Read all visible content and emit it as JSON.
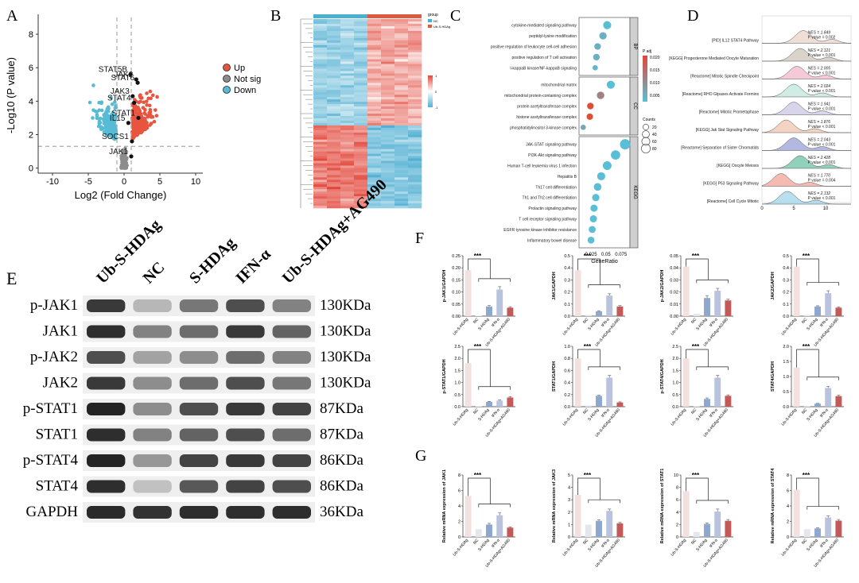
{
  "panels": {
    "A": "A",
    "B": "B",
    "C": "C",
    "D": "D",
    "E": "E",
    "F": "F",
    "G": "G"
  },
  "colors": {
    "up": "#e8543f",
    "down": "#56bcd6",
    "notsig": "#8c8c8c",
    "bar1": "#f2e1df",
    "bar2": "#e6e6ee",
    "bar3": "#8ea7cf",
    "bar4": "#b9c3df",
    "bar5": "#c25a5a"
  },
  "chart_data": [
    {
      "type": "scatter",
      "id": "volcano",
      "title": "",
      "xlabel": "Log2 (Fold Change)",
      "ylabel": "-Log10 (P value)",
      "xlim": [
        -12,
        11
      ],
      "ylim": [
        -0.3,
        9
      ],
      "xticks": [
        -10,
        -5,
        0,
        5,
        10
      ],
      "yticks": [
        0,
        2,
        4,
        6,
        8
      ],
      "thresholds": {
        "fc": [
          -1,
          1
        ],
        "p": 1.3
      },
      "legend": [
        {
          "label": "Up",
          "key": "up"
        },
        {
          "label": "Not sig",
          "key": "notsig"
        },
        {
          "label": "Down",
          "key": "down"
        }
      ],
      "labeled_genes": [
        {
          "name": "STAT5B",
          "x": 0.9,
          "y": 5.6
        },
        {
          "name": "JAK2",
          "x": 1.7,
          "y": 5.3
        },
        {
          "name": "STAT6",
          "x": 1.9,
          "y": 5.1
        },
        {
          "name": "JAK3",
          "x": 1.2,
          "y": 4.3
        },
        {
          "name": "STAT4",
          "x": 1.4,
          "y": 3.9
        },
        {
          "name": "STAT1",
          "x": 2.0,
          "y": 3.0
        },
        {
          "name": "IL15",
          "x": 0.6,
          "y": 2.7
        },
        {
          "name": "SOCS1",
          "x": 1.1,
          "y": 1.6
        },
        {
          "name": "JAK1",
          "x": 1.0,
          "y": 0.7
        }
      ]
    },
    {
      "type": "heatmap",
      "id": "heatmap",
      "groups": [
        "NC",
        "Ub-S-HDAg"
      ],
      "legend_title": "group",
      "scale": [
        "-1",
        "0",
        "1"
      ]
    },
    {
      "type": "scatter",
      "id": "go_dotplot",
      "xlabel": "GeneRatio",
      "xticks": [
        0.025,
        0.05,
        0.075
      ],
      "xlim": [
        0.005,
        0.09
      ],
      "facets": [
        {
          "name": "BP",
          "terms": [
            {
              "term": "cytokine-mediated signaling pathway",
              "ratio": 0.052,
              "size": 40,
              "padj": 0.004
            },
            {
              "term": "peptidyl-lysine modification",
              "ratio": 0.045,
              "size": 30,
              "padj": 0.006
            },
            {
              "term": "positive regulation of leukocyte cell-cell adhesion",
              "ratio": 0.036,
              "size": 22,
              "padj": 0.006
            },
            {
              "term": "positive regulation of T cell activation",
              "ratio": 0.034,
              "size": 22,
              "padj": 0.006
            },
            {
              "term": "I-kappaB kinase/NF-kappaB signaling",
              "ratio": 0.032,
              "size": 10,
              "padj": 0.005
            }
          ]
        },
        {
          "name": "CC",
          "terms": [
            {
              "term": "mitochondrial matrix",
              "ratio": 0.058,
              "size": 40,
              "padj": 0.004
            },
            {
              "term": "mitochondrial protein-containing complex",
              "ratio": 0.041,
              "size": 32,
              "padj": 0.012
            },
            {
              "term": "protein acetyltransferase complex",
              "ratio": 0.024,
              "size": 22,
              "padj": 0.019
            },
            {
              "term": "histone acetyltransferase complex",
              "ratio": 0.023,
              "size": 20,
              "padj": 0.019
            },
            {
              "term": "phosphatidylinositol 3-kinase complex",
              "ratio": 0.012,
              "size": 10,
              "padj": 0.007
            }
          ]
        },
        {
          "name": "KEGG",
          "terms": [
            {
              "term": "JAK-STAT signaling pathway",
              "ratio": 0.082,
              "size": 80,
              "padj": 0.004
            },
            {
              "term": "PI3K-Akt signaling pathway",
              "ratio": 0.066,
              "size": 60,
              "padj": 0.004
            },
            {
              "term": "Human T-cell leukemia virus 1 infection",
              "ratio": 0.052,
              "size": 50,
              "padj": 0.004
            },
            {
              "term": "Hepatitis B",
              "ratio": 0.042,
              "size": 40,
              "padj": 0.004
            },
            {
              "term": "Th17 cell differentiation",
              "ratio": 0.036,
              "size": 34,
              "padj": 0.004
            },
            {
              "term": "Th1 and Th2 cell differentiation",
              "ratio": 0.033,
              "size": 30,
              "padj": 0.004
            },
            {
              "term": "Prolactin signaling pathway",
              "ratio": 0.03,
              "size": 28,
              "padj": 0.004
            },
            {
              "term": "T cell receptor signaling pathway",
              "ratio": 0.029,
              "size": 28,
              "padj": 0.004
            },
            {
              "term": "EGFR tyrosine kinase inhibitor resistance",
              "ratio": 0.027,
              "size": 26,
              "padj": 0.004
            },
            {
              "term": "Inflammatory bowel disease",
              "ratio": 0.025,
              "size": 24,
              "padj": 0.004
            }
          ]
        }
      ],
      "legend": {
        "color_title": "P adj",
        "color_ticks": [
          "0.020",
          "0.015",
          "0.010",
          "0.005"
        ],
        "size_title": "Counts",
        "size_values": [
          20,
          40,
          60,
          80
        ]
      }
    },
    {
      "type": "area",
      "id": "gsea_ridge",
      "xticks": [
        0,
        5,
        10
      ],
      "xlim": [
        0,
        14
      ],
      "pathways": [
        {
          "name": "[PID] IL12 STAT4 Pathway",
          "nes": "NES = 1.849",
          "p": "P value = 0.002",
          "peak": 6.5,
          "color": "#e8d3c7"
        },
        {
          "name": "[KEGG] Progesterone Mediated Oocyte Maturation",
          "nes": "NES = 2.121",
          "p": "P value < 0.001",
          "peak": 6.0,
          "color": "#ccc4b8"
        },
        {
          "name": "[Reactome] Mitotic Spindle Checkpoint",
          "nes": "NES = 2.005",
          "p": "P value < 0.001",
          "peak": 5.5,
          "color": "#f2b8c8"
        },
        {
          "name": "[Reactome] RHO Gtpases Activate Formins",
          "nes": "NES = 2.024",
          "p": "P value < 0.001",
          "peak": 5.0,
          "color": "#bfe6dc"
        },
        {
          "name": "[Reactome] Mitotic Prometaphase",
          "nes": "NES = 1.941",
          "p": "P value < 0.001",
          "peak": 5.0,
          "color": "#c9c6e6"
        },
        {
          "name": "[KEGG] Jak Stat Signaling Pathway",
          "nes": "NES = 1.876",
          "p": "P value < 0.001",
          "peak": 3.8,
          "color": "#f2c4b0"
        },
        {
          "name": "[Reactome] Separation of Sister Chromatids",
          "nes": "NES = 2.043",
          "p": "P value < 0.001",
          "peak": 5.0,
          "color": "#9aa0d6"
        },
        {
          "name": "[KEGG] Oocyte Meiosis",
          "nes": "NES = 2.428",
          "p": "P value < 0.001",
          "peak": 6.0,
          "color": "#6cc2a6"
        },
        {
          "name": "[KEGG] P53 Signaling Pathway",
          "nes": "NES = 1.770",
          "p": "P value = 0.004",
          "peak": 3.0,
          "color": "#f2a49a"
        },
        {
          "name": "[Reactome] Cell Cycle Mitotic",
          "nes": "NES = 2.132",
          "p": "P value < 0.001",
          "peak": 4.0,
          "color": "#9fd4e8"
        }
      ]
    },
    {
      "type": "table",
      "id": "western_blot",
      "lanes": [
        "Ub-S-HDAg",
        "NC",
        "S-HDAg",
        "IFN-α",
        "Ub-S-HDAg+AG490"
      ],
      "rows": [
        {
          "protein": "p-JAK1",
          "size": "130KDa",
          "intensity": [
            0.85,
            0.25,
            0.55,
            0.75,
            0.5
          ]
        },
        {
          "protein": "JAK1",
          "size": "130KDa",
          "intensity": [
            0.9,
            0.5,
            0.6,
            0.85,
            0.65
          ]
        },
        {
          "protein": "p-JAK2",
          "size": "130KDa",
          "intensity": [
            0.75,
            0.35,
            0.45,
            0.6,
            0.5
          ]
        },
        {
          "protein": "JAK2",
          "size": "130KDa",
          "intensity": [
            0.85,
            0.45,
            0.6,
            0.75,
            0.55
          ]
        },
        {
          "protein": "p-STAT1",
          "size": "87KDa",
          "intensity": [
            0.95,
            0.45,
            0.75,
            0.85,
            0.8
          ]
        },
        {
          "protein": "STAT1",
          "size": "87KDa",
          "intensity": [
            0.9,
            0.5,
            0.65,
            0.75,
            0.6
          ]
        },
        {
          "protein": "p-STAT4",
          "size": "86KDa",
          "intensity": [
            0.95,
            0.4,
            0.8,
            0.85,
            0.8
          ]
        },
        {
          "protein": "STAT4",
          "size": "86KDa",
          "intensity": [
            0.9,
            0.2,
            0.7,
            0.8,
            0.75
          ]
        },
        {
          "protein": "GAPDH",
          "size": "36KDa",
          "intensity": [
            0.92,
            0.88,
            0.9,
            0.9,
            0.9
          ]
        }
      ]
    },
    {
      "type": "bar",
      "id": "protein_bars",
      "categories": [
        "Ub-S-HDAg",
        "NC",
        "S-HDAg",
        "IFN-α",
        "Ub-S-HDAg+AG490"
      ],
      "significance": "***",
      "charts": [
        {
          "ylabel": "p-JAK1/GAPDH",
          "ylim": [
            0,
            0.25
          ],
          "yticks": [
            "0.00",
            "0.05",
            "0.10",
            "0.15",
            "0.20",
            "0.25"
          ],
          "values": [
            0.19,
            0.002,
            0.04,
            0.11,
            0.035
          ],
          "err": [
            0,
            0,
            0.004,
            0.012,
            0.004
          ]
        },
        {
          "ylabel": "JAK1/GAPDH",
          "ylim": [
            0,
            0.5
          ],
          "yticks": [
            "0.0",
            "0.1",
            "0.2",
            "0.3",
            "0.4",
            "0.5"
          ],
          "values": [
            0.38,
            0.01,
            0.04,
            0.17,
            0.08
          ],
          "err": [
            0,
            0,
            0.005,
            0.015,
            0.008
          ]
        },
        {
          "ylabel": "p-JAK2/GAPDH",
          "ylim": [
            0,
            0.05
          ],
          "yticks": [
            "0.00",
            "0.01",
            "0.02",
            "0.03",
            "0.04",
            "0.05"
          ],
          "values": [
            0.041,
            0.002,
            0.015,
            0.021,
            0.013
          ],
          "err": [
            0,
            0,
            0.002,
            0.002,
            0.001
          ]
        },
        {
          "ylabel": "JAK2/GAPDH",
          "ylim": [
            0,
            0.5
          ],
          "yticks": [
            "0.0",
            "0.1",
            "0.2",
            "0.3",
            "0.4",
            "0.5"
          ],
          "values": [
            0.41,
            0.01,
            0.08,
            0.19,
            0.07
          ],
          "err": [
            0,
            0,
            0.006,
            0.02,
            0.006
          ]
        },
        {
          "ylabel": "p-STAT1/GAPDH",
          "ylim": [
            0,
            2.5
          ],
          "yticks": [
            "0.0",
            "0.5",
            "1.0",
            "1.5",
            "2.0",
            "2.5"
          ],
          "values": [
            1.8,
            0.02,
            0.2,
            0.25,
            0.38
          ],
          "err": [
            0,
            0,
            0.02,
            0.03,
            0.04
          ]
        },
        {
          "ylabel": "STAT1/GAPDH",
          "ylim": [
            0,
            1.0
          ],
          "yticks": [
            "0.0",
            "0.2",
            "0.4",
            "0.6",
            "0.8",
            "1.0"
          ],
          "values": [
            0.8,
            0.02,
            0.18,
            0.48,
            0.07
          ],
          "err": [
            0,
            0,
            0.01,
            0.04,
            0.01
          ]
        },
        {
          "ylabel": "p-STAT4/GAPDH",
          "ylim": [
            0,
            2.5
          ],
          "yticks": [
            "0.0",
            "0.5",
            "1.0",
            "1.5",
            "2.0",
            "2.5"
          ],
          "values": [
            2.0,
            0.02,
            0.32,
            1.2,
            0.45
          ],
          "err": [
            0,
            0,
            0.04,
            0.1,
            0.04
          ]
        },
        {
          "ylabel": "STAT4/GAPDH",
          "ylim": [
            0,
            2.0
          ],
          "yticks": [
            "0.0",
            "0.5",
            "1.0",
            "1.5",
            "2.0"
          ],
          "values": [
            1.3,
            0.02,
            0.1,
            0.62,
            0.35
          ],
          "err": [
            0,
            0,
            0.01,
            0.05,
            0.03
          ]
        }
      ]
    },
    {
      "type": "bar",
      "id": "mrna_bars",
      "categories": [
        "Ub-S-HDAg",
        "NC",
        "S-HDAg",
        "IFN-α",
        "Ub-S-HDAg+AG490"
      ],
      "significance": "***",
      "charts": [
        {
          "ylabel": "Relative mRNA expression of JAK1",
          "ylim": [
            0,
            8
          ],
          "yticks": [
            "0",
            "2",
            "4",
            "6",
            "8"
          ],
          "values": [
            5.3,
            1.0,
            1.6,
            2.8,
            1.2
          ],
          "err": [
            0,
            0,
            0.15,
            0.3,
            0.1
          ]
        },
        {
          "ylabel": "Relative mRNA expression of JAK3",
          "ylim": [
            0,
            5
          ],
          "yticks": [
            "0",
            "1",
            "2",
            "3",
            "4",
            "5"
          ],
          "values": [
            3.4,
            1.0,
            1.3,
            2.1,
            1.1
          ],
          "err": [
            0,
            0,
            0.08,
            0.15,
            0.08
          ]
        },
        {
          "ylabel": "Relative mRNA expression of STAT1",
          "ylim": [
            0,
            10
          ],
          "yticks": [
            "0",
            "2",
            "4",
            "6",
            "8",
            "10"
          ],
          "values": [
            7.4,
            0.8,
            2.1,
            4.1,
            2.6
          ],
          "err": [
            0,
            0,
            0.15,
            0.4,
            0.2
          ]
        },
        {
          "ylabel": "Relative mRNA expression of STAT4",
          "ylim": [
            0,
            8
          ],
          "yticks": [
            "0",
            "2",
            "4",
            "6",
            "8"
          ],
          "values": [
            6.1,
            1.0,
            1.1,
            2.5,
            2.1
          ],
          "err": [
            0,
            0,
            0.08,
            0.2,
            0.15
          ]
        }
      ]
    }
  ]
}
